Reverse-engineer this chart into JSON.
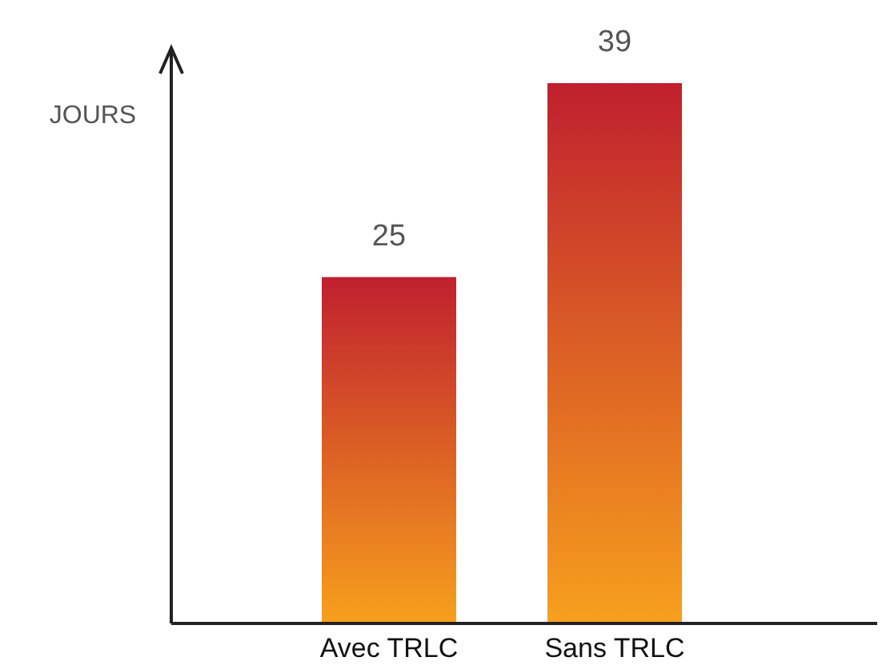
{
  "chart_data": {
    "type": "bar",
    "ylabel": "JOURS",
    "categories": [
      "Avec TRLC",
      "Sans TRLC"
    ],
    "values": [
      25,
      39
    ],
    "color": "#c0202e",
    "data_labels": true,
    "relative": false
  }
}
